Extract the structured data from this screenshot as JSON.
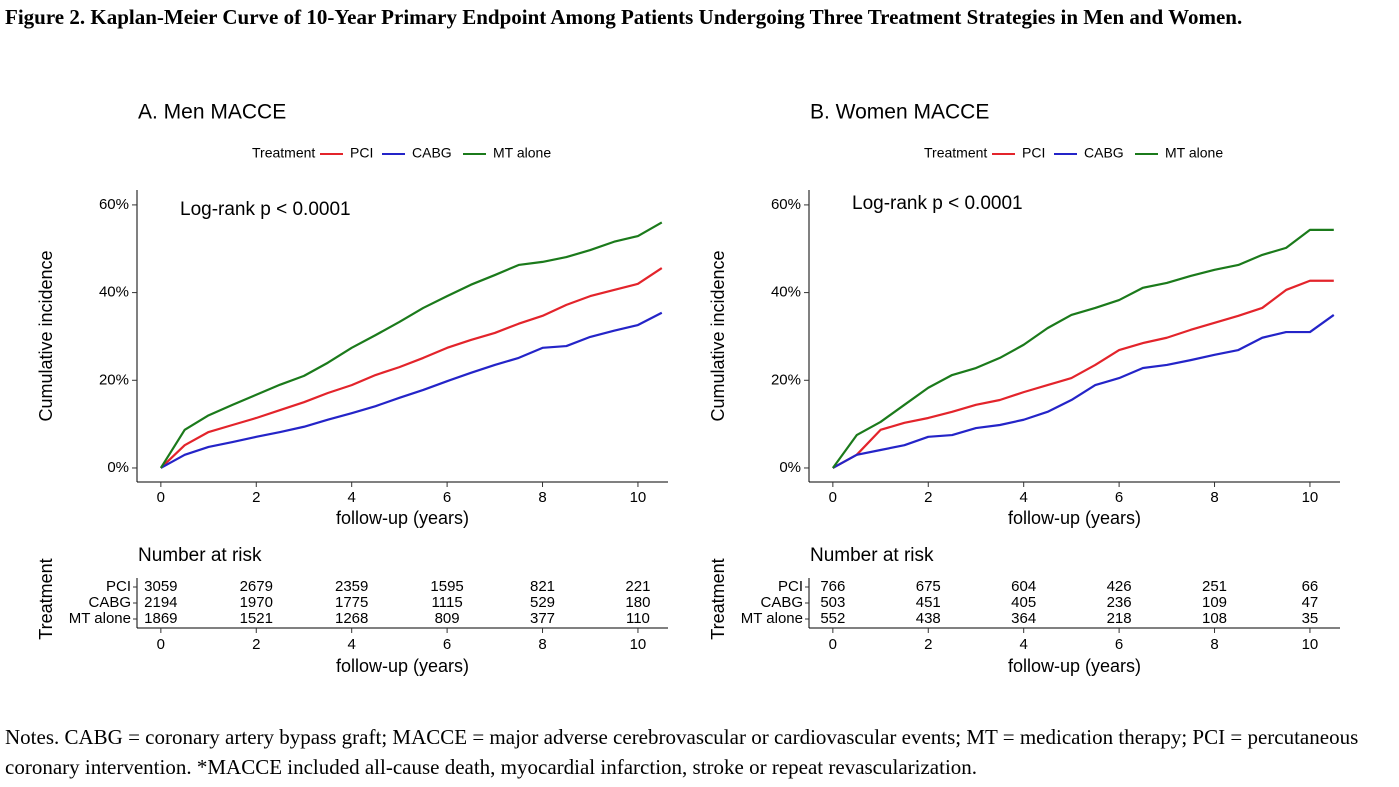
{
  "title": "Figure 2. Kaplan-Meier Curve of 10-Year Primary Endpoint Among Patients Undergoing Three Treatment Strategies in Men and Women.",
  "notes": "Notes. CABG = coronary artery bypass graft; MACCE = major adverse cerebrovascular or cardiovascular events; MT = medication therapy; PCI = percutaneous coronary intervention. *MACCE included all-cause death, myocardial infarction, stroke or repeat revascularization.",
  "chart_data": [
    {
      "type": "line",
      "title": "A.  Men  MACCE",
      "legend_title": "Treatment",
      "annotation": "Log-rank p < 0.0001",
      "xlabel": "follow-up (years)",
      "ylabel": "Cumulative incidence",
      "grid": false,
      "x": [
        0,
        0.5,
        1,
        1.5,
        2,
        2.5,
        3,
        3.5,
        4,
        4.5,
        5,
        5.5,
        6,
        6.5,
        7,
        7.5,
        8,
        8.5,
        9,
        9.5,
        10,
        10.5
      ],
      "series": [
        {
          "name": "PCI",
          "color": "#e3242b",
          "values": [
            0,
            5.2,
            8.2,
            9.8,
            11.4,
            13.2,
            15,
            17.1,
            18.9,
            21.2,
            23,
            25.1,
            27.4,
            29.2,
            30.8,
            32.9,
            34.7,
            37.2,
            39.2,
            40.6,
            42,
            45.6
          ]
        },
        {
          "name": "CABG",
          "color": "#2424c8",
          "values": [
            0,
            3,
            4.8,
            5.9,
            7.1,
            8.2,
            9.4,
            11,
            12.5,
            14.1,
            16,
            17.8,
            19.8,
            21.7,
            23.5,
            25.1,
            27.4,
            27.8,
            29.9,
            31.3,
            32.6,
            35.4
          ]
        },
        {
          "name": "MT alone",
          "color": "#1b7a1b",
          "values": [
            0,
            8.7,
            12,
            14.4,
            16.7,
            19,
            21,
            24,
            27.4,
            30.3,
            33.3,
            36.5,
            39.2,
            41.8,
            44,
            46.3,
            47,
            48.1,
            49.7,
            51.6,
            52.9,
            56
          ]
        }
      ],
      "xlim": [
        -0.5,
        10.63
      ],
      "xticks": [
        0,
        2,
        4,
        6,
        8,
        10
      ],
      "ylim": [
        -3.2,
        63.4
      ],
      "yticks": [
        {
          "value": 0,
          "label": "0%"
        },
        {
          "value": 20,
          "label": "20%"
        },
        {
          "value": 40,
          "label": "40%"
        },
        {
          "value": 60,
          "label": "60%"
        }
      ],
      "risk_table": {
        "title": "Number at risk",
        "ylabel": "Treatment",
        "counts": [
          [
            3059,
            2679,
            2359,
            1595,
            821,
            221
          ],
          [
            2194,
            1970,
            1775,
            1115,
            529,
            180
          ],
          [
            1869,
            1521,
            1268,
            809,
            377,
            110
          ]
        ]
      }
    },
    {
      "type": "line",
      "title": "B.  Women  MACCE",
      "legend_title": "Treatment",
      "annotation": "Log-rank p < 0.0001",
      "xlabel": "follow-up (years)",
      "ylabel": "Cumulative incidence",
      "grid": false,
      "x": [
        0,
        0.5,
        1,
        1.5,
        2,
        2.5,
        3,
        3.5,
        4,
        4.5,
        5,
        5.5,
        6,
        6.5,
        7,
        7.5,
        8,
        8.5,
        9,
        9.5,
        10,
        10.5
      ],
      "series": [
        {
          "name": "PCI",
          "color": "#e3242b",
          "values": [
            0,
            3,
            8.7,
            10.3,
            11.4,
            12.8,
            14.4,
            15.5,
            17.3,
            18.9,
            20.5,
            23.5,
            26.9,
            28.5,
            29.7,
            31.5,
            33.1,
            34.7,
            36.5,
            40.6,
            42.7,
            42.7
          ]
        },
        {
          "name": "CABG",
          "color": "#2424c8",
          "values": [
            0,
            3,
            4.1,
            5.2,
            7.1,
            7.5,
            9.1,
            9.8,
            11,
            12.8,
            15.5,
            18.9,
            20.5,
            22.8,
            23.5,
            24.6,
            25.8,
            26.9,
            29.7,
            31,
            31,
            34.9
          ]
        },
        {
          "name": "MT alone",
          "color": "#1b7a1b",
          "values": [
            0,
            7.5,
            10.5,
            14.4,
            18.3,
            21.2,
            22.8,
            25.1,
            28.1,
            31.9,
            34.9,
            36.5,
            38.3,
            41.1,
            42.2,
            43.8,
            45.2,
            46.3,
            48.6,
            50.2,
            54.3,
            54.3
          ]
        }
      ],
      "xlim": [
        -0.5,
        10.63
      ],
      "xticks": [
        0,
        2,
        4,
        6,
        8,
        10
      ],
      "ylim": [
        -3.2,
        63.4
      ],
      "yticks": [
        {
          "value": 0,
          "label": "0%"
        },
        {
          "value": 20,
          "label": "20%"
        },
        {
          "value": 40,
          "label": "40%"
        },
        {
          "value": 60,
          "label": "60%"
        }
      ],
      "risk_table": {
        "title": "Number at risk",
        "ylabel": "Treatment",
        "counts": [
          [
            766,
            675,
            604,
            426,
            251,
            66
          ],
          [
            503,
            451,
            405,
            236,
            109,
            47
          ],
          [
            552,
            438,
            364,
            218,
            108,
            35
          ]
        ]
      }
    }
  ]
}
